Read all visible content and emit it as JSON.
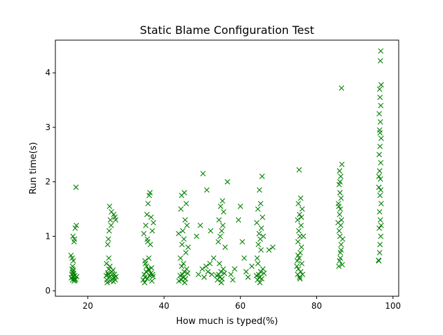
{
  "chart_data": {
    "type": "scatter",
    "title": "Static Blame Configuration Test",
    "xlabel": "How much is typed(%)",
    "ylabel": "Run time(s)",
    "xlim": [
      11.5,
      101.5
    ],
    "ylim": [
      -0.1,
      4.6
    ],
    "xticks": [
      20,
      40,
      60,
      80,
      100
    ],
    "yticks": [
      0,
      1,
      2,
      3,
      4
    ],
    "grid": false,
    "marker": "x",
    "color": "#008000",
    "series": [
      {
        "points": [
          [
            16.0,
            0.2
          ],
          [
            16.2,
            0.25
          ],
          [
            15.8,
            0.3
          ],
          [
            16.5,
            0.22
          ],
          [
            16.1,
            0.35
          ],
          [
            15.9,
            0.4
          ],
          [
            16.4,
            0.18
          ],
          [
            16.6,
            0.28
          ],
          [
            16.3,
            0.32
          ],
          [
            15.7,
            0.24
          ],
          [
            16.8,
            0.21
          ],
          [
            16.0,
            0.45
          ],
          [
            16.2,
            0.55
          ],
          [
            15.9,
            0.6
          ],
          [
            16.4,
            0.9
          ],
          [
            16.1,
            1.0
          ],
          [
            16.7,
            1.15
          ],
          [
            17.0,
            1.2
          ],
          [
            16.5,
            0.95
          ],
          [
            16.9,
            1.9
          ],
          [
            16.3,
            0.27
          ],
          [
            16.6,
            0.19
          ],
          [
            16.2,
            0.38
          ],
          [
            17.1,
            0.26
          ],
          [
            15.6,
            0.65
          ],
          [
            25.0,
            0.2
          ],
          [
            25.3,
            0.3
          ],
          [
            25.6,
            0.25
          ],
          [
            26.0,
            0.18
          ],
          [
            26.3,
            0.35
          ],
          [
            24.8,
            0.28
          ],
          [
            25.5,
            0.4
          ],
          [
            26.5,
            0.22
          ],
          [
            27.0,
            0.3
          ],
          [
            27.2,
            0.2
          ],
          [
            25.1,
            0.15
          ],
          [
            25.8,
            0.45
          ],
          [
            26.6,
            0.38
          ],
          [
            27.4,
            0.26
          ],
          [
            24.9,
            0.5
          ],
          [
            25.2,
            0.85
          ],
          [
            25.4,
            0.95
          ],
          [
            25.6,
            1.1
          ],
          [
            25.9,
            1.3
          ],
          [
            26.2,
            1.45
          ],
          [
            25.7,
            1.55
          ],
          [
            26.8,
            1.4
          ],
          [
            27.1,
            1.35
          ],
          [
            27.3,
            1.3
          ],
          [
            26.1,
            1.2
          ],
          [
            25.5,
            0.6
          ],
          [
            26.4,
            0.3
          ],
          [
            26.9,
            0.24
          ],
          [
            25.2,
            0.33
          ],
          [
            26.7,
            0.17
          ],
          [
            34.5,
            0.2
          ],
          [
            34.8,
            0.3
          ],
          [
            35.0,
            0.25
          ],
          [
            35.3,
            0.35
          ],
          [
            35.6,
            0.22
          ],
          [
            35.9,
            0.4
          ],
          [
            36.2,
            0.28
          ],
          [
            36.5,
            0.32
          ],
          [
            36.8,
            0.18
          ],
          [
            37.1,
            0.26
          ],
          [
            35.1,
            0.5
          ],
          [
            35.4,
            0.45
          ],
          [
            36.0,
            0.38
          ],
          [
            36.7,
            0.42
          ],
          [
            34.9,
            0.15
          ],
          [
            34.7,
            1.05
          ],
          [
            35.2,
            1.2
          ],
          [
            35.5,
            1.4
          ],
          [
            35.8,
            1.6
          ],
          [
            36.1,
            1.75
          ],
          [
            36.3,
            1.8
          ],
          [
            36.6,
            1.35
          ],
          [
            36.9,
            1.1
          ],
          [
            37.2,
            1.25
          ],
          [
            35.7,
            0.9
          ],
          [
            36.4,
            0.85
          ],
          [
            35.0,
            0.55
          ],
          [
            36.0,
            0.6
          ],
          [
            37.0,
            0.3
          ],
          [
            35.6,
            0.95
          ],
          [
            44.5,
            0.2
          ],
          [
            44.8,
            0.3
          ],
          [
            45.0,
            0.25
          ],
          [
            45.3,
            0.35
          ],
          [
            45.6,
            0.22
          ],
          [
            45.9,
            0.4
          ],
          [
            44.2,
            0.28
          ],
          [
            46.2,
            0.32
          ],
          [
            43.9,
            0.18
          ],
          [
            44.6,
            0.45
          ],
          [
            45.1,
            0.5
          ],
          [
            45.4,
            0.15
          ],
          [
            44.3,
            0.6
          ],
          [
            45.7,
            0.7
          ],
          [
            44.7,
            0.85
          ],
          [
            45.2,
            0.95
          ],
          [
            44.9,
            1.1
          ],
          [
            45.5,
            1.3
          ],
          [
            44.4,
            1.5
          ],
          [
            45.8,
            1.6
          ],
          [
            44.6,
            1.75
          ],
          [
            45.3,
            1.8
          ],
          [
            46.0,
            1.2
          ],
          [
            43.8,
            1.05
          ],
          [
            46.3,
            0.8
          ],
          [
            49.0,
            0.3
          ],
          [
            50.0,
            0.4
          ],
          [
            50.5,
            0.25
          ],
          [
            51.0,
            0.45
          ],
          [
            51.5,
            0.35
          ],
          [
            52.0,
            0.5
          ],
          [
            52.5,
            0.3
          ],
          [
            48.5,
            1.0
          ],
          [
            49.5,
            1.2
          ],
          [
            50.2,
            2.15
          ],
          [
            51.2,
            1.85
          ],
          [
            52.2,
            1.1
          ],
          [
            53.0,
            0.6
          ],
          [
            54.0,
            0.2
          ],
          [
            54.3,
            0.3
          ],
          [
            54.6,
            0.25
          ],
          [
            54.9,
            0.35
          ],
          [
            55.2,
            0.22
          ],
          [
            55.5,
            0.4
          ],
          [
            53.8,
            0.28
          ],
          [
            55.8,
            0.32
          ],
          [
            54.5,
            0.5
          ],
          [
            55.0,
            0.15
          ],
          [
            54.2,
            0.9
          ],
          [
            54.7,
            1.0
          ],
          [
            55.1,
            1.1
          ],
          [
            55.4,
            1.2
          ],
          [
            54.4,
            1.3
          ],
          [
            55.6,
            1.45
          ],
          [
            54.8,
            1.55
          ],
          [
            55.3,
            1.65
          ],
          [
            56.0,
            0.8
          ],
          [
            56.6,
            2.0
          ],
          [
            57.5,
            0.3
          ],
          [
            58.5,
            0.4
          ],
          [
            59.5,
            1.3
          ],
          [
            60.0,
            1.55
          ],
          [
            60.5,
            0.9
          ],
          [
            61.0,
            0.6
          ],
          [
            61.5,
            0.35
          ],
          [
            62.0,
            0.25
          ],
          [
            63.0,
            0.45
          ],
          [
            58.0,
            0.2
          ],
          [
            64.5,
            0.2
          ],
          [
            64.8,
            0.3
          ],
          [
            65.0,
            0.25
          ],
          [
            65.3,
            0.35
          ],
          [
            65.6,
            0.22
          ],
          [
            65.9,
            0.4
          ],
          [
            64.2,
            0.28
          ],
          [
            66.2,
            0.32
          ],
          [
            64.6,
            0.5
          ],
          [
            65.1,
            0.15
          ],
          [
            64.4,
            0.6
          ],
          [
            65.4,
            0.75
          ],
          [
            64.7,
            0.85
          ],
          [
            65.2,
            0.95
          ],
          [
            64.9,
            1.05
          ],
          [
            65.5,
            1.15
          ],
          [
            64.3,
            1.25
          ],
          [
            65.8,
            1.35
          ],
          [
            64.6,
            1.5
          ],
          [
            65.3,
            1.6
          ],
          [
            65.0,
            1.85
          ],
          [
            65.7,
            2.1
          ],
          [
            66.0,
            1.0
          ],
          [
            67.5,
            0.75
          ],
          [
            68.5,
            0.8
          ],
          [
            75.0,
            0.3
          ],
          [
            75.2,
            0.4
          ],
          [
            75.5,
            0.25
          ],
          [
            75.8,
            0.35
          ],
          [
            76.1,
            0.5
          ],
          [
            74.8,
            0.45
          ],
          [
            75.4,
            0.6
          ],
          [
            75.7,
            0.7
          ],
          [
            76.0,
            0.8
          ],
          [
            75.1,
            0.9
          ],
          [
            75.6,
            1.0
          ],
          [
            75.3,
            1.1
          ],
          [
            75.9,
            1.2
          ],
          [
            75.0,
            1.3
          ],
          [
            75.5,
            1.4
          ],
          [
            76.2,
            1.5
          ],
          [
            75.2,
            1.6
          ],
          [
            75.8,
            1.7
          ],
          [
            75.4,
            2.22
          ],
          [
            76.5,
            1.0
          ],
          [
            74.9,
            0.55
          ],
          [
            76.3,
            0.3
          ],
          [
            75.6,
            0.22
          ],
          [
            75.1,
            0.65
          ],
          [
            76.0,
            1.35
          ],
          [
            85.8,
            0.45
          ],
          [
            86.0,
            0.55
          ],
          [
            86.2,
            0.7
          ],
          [
            86.4,
            0.85
          ],
          [
            86.1,
            1.0
          ],
          [
            85.9,
            1.1
          ],
          [
            86.3,
            1.2
          ],
          [
            86.5,
            1.3
          ],
          [
            86.0,
            1.4
          ],
          [
            86.2,
            1.5
          ],
          [
            85.7,
            1.6
          ],
          [
            86.4,
            1.7
          ],
          [
            86.1,
            1.8
          ],
          [
            85.9,
            1.95
          ],
          [
            86.3,
            2.1
          ],
          [
            86.0,
            2.2
          ],
          [
            86.6,
            2.32
          ],
          [
            86.5,
            3.72
          ],
          [
            86.8,
            0.95
          ],
          [
            85.6,
            1.25
          ],
          [
            86.7,
            0.48
          ],
          [
            86.2,
            0.6
          ],
          [
            85.8,
            1.55
          ],
          [
            86.4,
            0.75
          ],
          [
            86.1,
            2.0
          ],
          [
            96.3,
            0.55
          ],
          [
            96.5,
            0.7
          ],
          [
            96.6,
            0.85
          ],
          [
            96.8,
            1.0
          ],
          [
            96.4,
            1.15
          ],
          [
            96.7,
            1.3
          ],
          [
            96.5,
            1.45
          ],
          [
            96.9,
            1.6
          ],
          [
            96.6,
            1.75
          ],
          [
            96.3,
            1.9
          ],
          [
            96.7,
            2.05
          ],
          [
            96.5,
            2.2
          ],
          [
            96.8,
            2.35
          ],
          [
            96.4,
            2.5
          ],
          [
            96.6,
            2.65
          ],
          [
            96.9,
            2.8
          ],
          [
            96.5,
            2.95
          ],
          [
            96.7,
            3.1
          ],
          [
            96.4,
            3.25
          ],
          [
            96.8,
            3.4
          ],
          [
            96.6,
            3.55
          ],
          [
            96.5,
            3.7
          ],
          [
            96.9,
            3.78
          ],
          [
            96.7,
            4.22
          ],
          [
            96.8,
            4.4
          ],
          [
            96.2,
            0.56
          ],
          [
            96.9,
            1.2
          ],
          [
            96.3,
            2.1
          ],
          [
            96.6,
            2.9
          ],
          [
            96.8,
            1.85
          ]
        ]
      }
    ]
  }
}
